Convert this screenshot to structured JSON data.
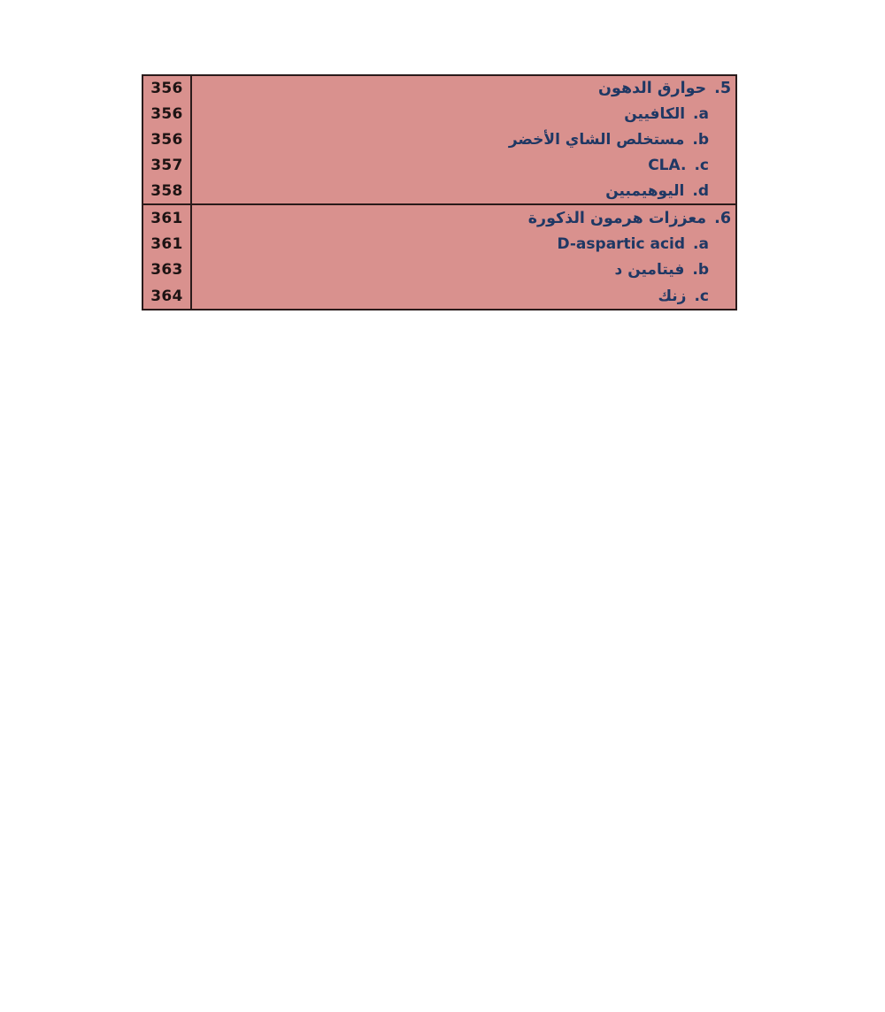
{
  "page": {
    "background_color": "#ffffff",
    "kind": "book-table-of-contents-fragment",
    "language": "Arabic (RTL) with Latin terms"
  },
  "table": {
    "background_color": "#d9918e",
    "border_color": "#2a1b1b",
    "entry_text_color": "#1f3864",
    "page_number_color": "#1d1313",
    "sections": [
      {
        "rows": [
          {
            "page": "356",
            "marker": "5.",
            "label": "حوارق الدهون",
            "level": "header"
          },
          {
            "page": "356",
            "marker": "a.",
            "label": "الكافيين",
            "level": "sub"
          },
          {
            "page": "356",
            "marker": "b.",
            "label": "مستخلص الشاي الأخضر",
            "level": "sub"
          },
          {
            "page": "357",
            "marker": "c.",
            "label": "CLA.",
            "level": "sub"
          },
          {
            "page": "358",
            "marker": "d.",
            "label": "اليوهيمبين",
            "level": "sub"
          }
        ]
      },
      {
        "rows": [
          {
            "page": "361",
            "marker": "6.",
            "label": "معززات هرمون الذكورة",
            "level": "header"
          },
          {
            "page": "361",
            "marker": "a.",
            "label": "D-aspartic acid",
            "level": "sub"
          },
          {
            "page": "363",
            "marker": "b.",
            "label": "فيتامين د",
            "level": "sub"
          },
          {
            "page": "364",
            "marker": "c.",
            "label": "زنك",
            "level": "sub"
          }
        ]
      }
    ]
  }
}
